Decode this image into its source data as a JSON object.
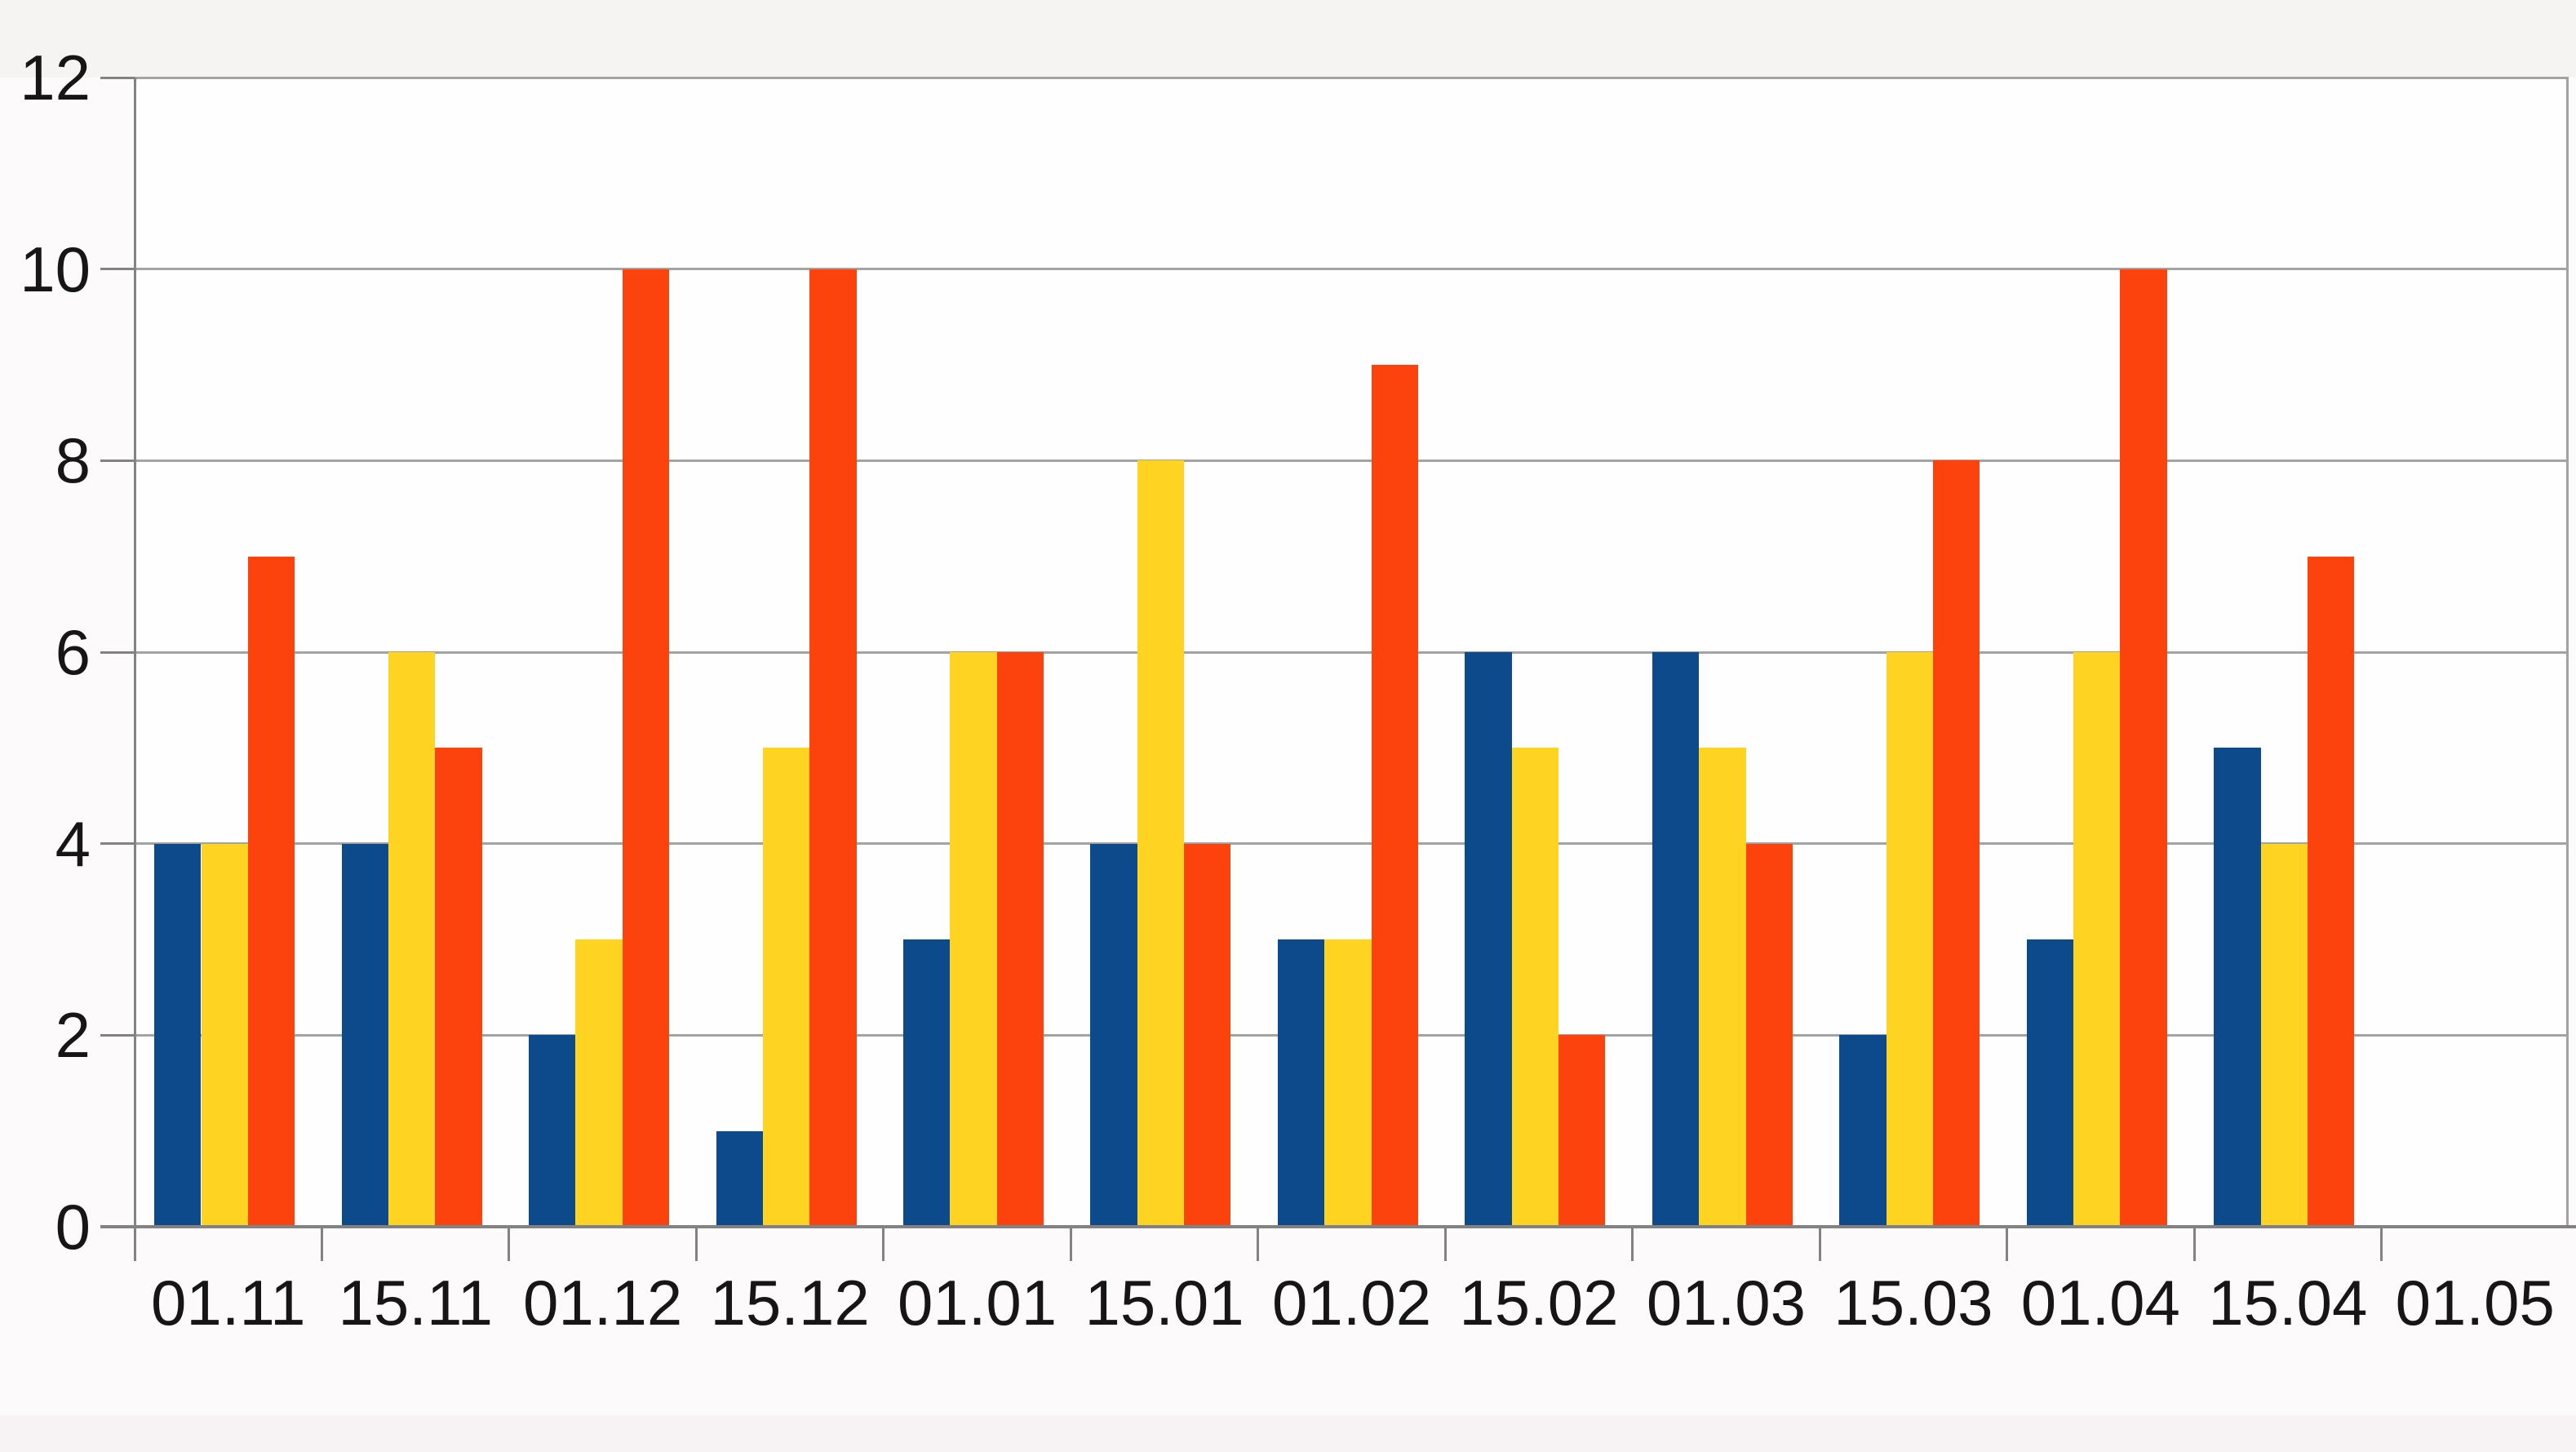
{
  "chart_data": {
    "type": "bar",
    "title": "",
    "xlabel": "",
    "ylabel": "",
    "categories": [
      "01.11",
      "15.11",
      "01.12",
      "15.12",
      "01.01",
      "15.01",
      "01.02",
      "15.02",
      "01.03",
      "15.03",
      "01.04",
      "15.04",
      "01.05"
    ],
    "series": [
      {
        "name": "series-blue",
        "color": "#0c4a8c",
        "values": [
          4,
          4,
          2,
          1,
          3,
          4,
          3,
          6,
          6,
          2,
          3,
          5,
          null
        ]
      },
      {
        "name": "series-yellow",
        "color": "#fed322",
        "values": [
          4,
          6,
          3,
          5,
          6,
          8,
          3,
          5,
          5,
          6,
          6,
          4,
          null
        ]
      },
      {
        "name": "series-red",
        "color": "#fc420d",
        "values": [
          7,
          5,
          10,
          10,
          6,
          4,
          9,
          2,
          4,
          8,
          10,
          7,
          null
        ]
      }
    ],
    "ylim": [
      0,
      12
    ],
    "yticks": [
      0,
      2,
      4,
      6,
      8,
      10,
      12
    ],
    "grid": true,
    "legend": "none"
  },
  "style": {
    "plot_background": "#fefefe",
    "outer_background": "#fcfafa",
    "top_band_color": "#f6f3f3",
    "bottom_band_color": "#f7f3f4",
    "gridline_color": "#a3a3a3",
    "axis_color": "#828282",
    "label_color": "#161616"
  }
}
